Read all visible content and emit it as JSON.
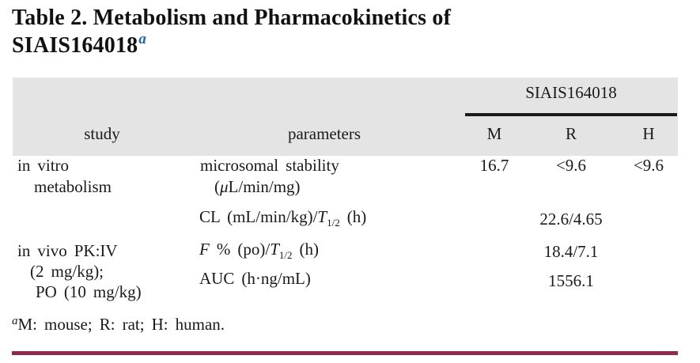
{
  "colors": {
    "header_background": "#e4e4e4",
    "spanner_rule": "#1b1b1b",
    "bottom_rule": "#8f2a4b",
    "title_marker_blue": "#2263b2",
    "text": "#1a1a1a"
  },
  "title": {
    "line1": "Table 2. Metabolism and Pharmacokinetics of",
    "line2": "SIAIS164018",
    "marker": "a"
  },
  "table": {
    "spanner": "SIAIS164018",
    "headers": {
      "study": "study",
      "parameters": "parameters",
      "m": "M",
      "r": "R",
      "h": "H"
    },
    "rows": {
      "invitro": {
        "study_line1": "in vitro",
        "study_line2": "metabolism"
      },
      "microsomal": {
        "line1": "microsomal stability",
        "line2_pre": "(",
        "mu": "μ",
        "line2_post": "L/min/mg)",
        "m": "16.7",
        "r": "<9.6",
        "h": "<9.6"
      },
      "cl": {
        "pre": "CL (mL/min/kg)/",
        "t": "T",
        "sub": "1/2",
        "post": " (h)",
        "value": "22.6/4.65"
      },
      "invivo": {
        "study_line1": "in vivo PK:IV",
        "study_line2": "(2 mg/kg);",
        "study_line3": "PO (10 mg/kg)"
      },
      "f": {
        "f": "F",
        "mid": " % (po)/",
        "t": "T",
        "sub": "1/2",
        "post": " (h)",
        "value": "18.4/7.1"
      },
      "auc": {
        "label": "AUC (h·ng/mL)",
        "value": "1556.1"
      }
    }
  },
  "footnote": {
    "marker": "a",
    "text": "M: mouse; R: rat; H: human."
  }
}
